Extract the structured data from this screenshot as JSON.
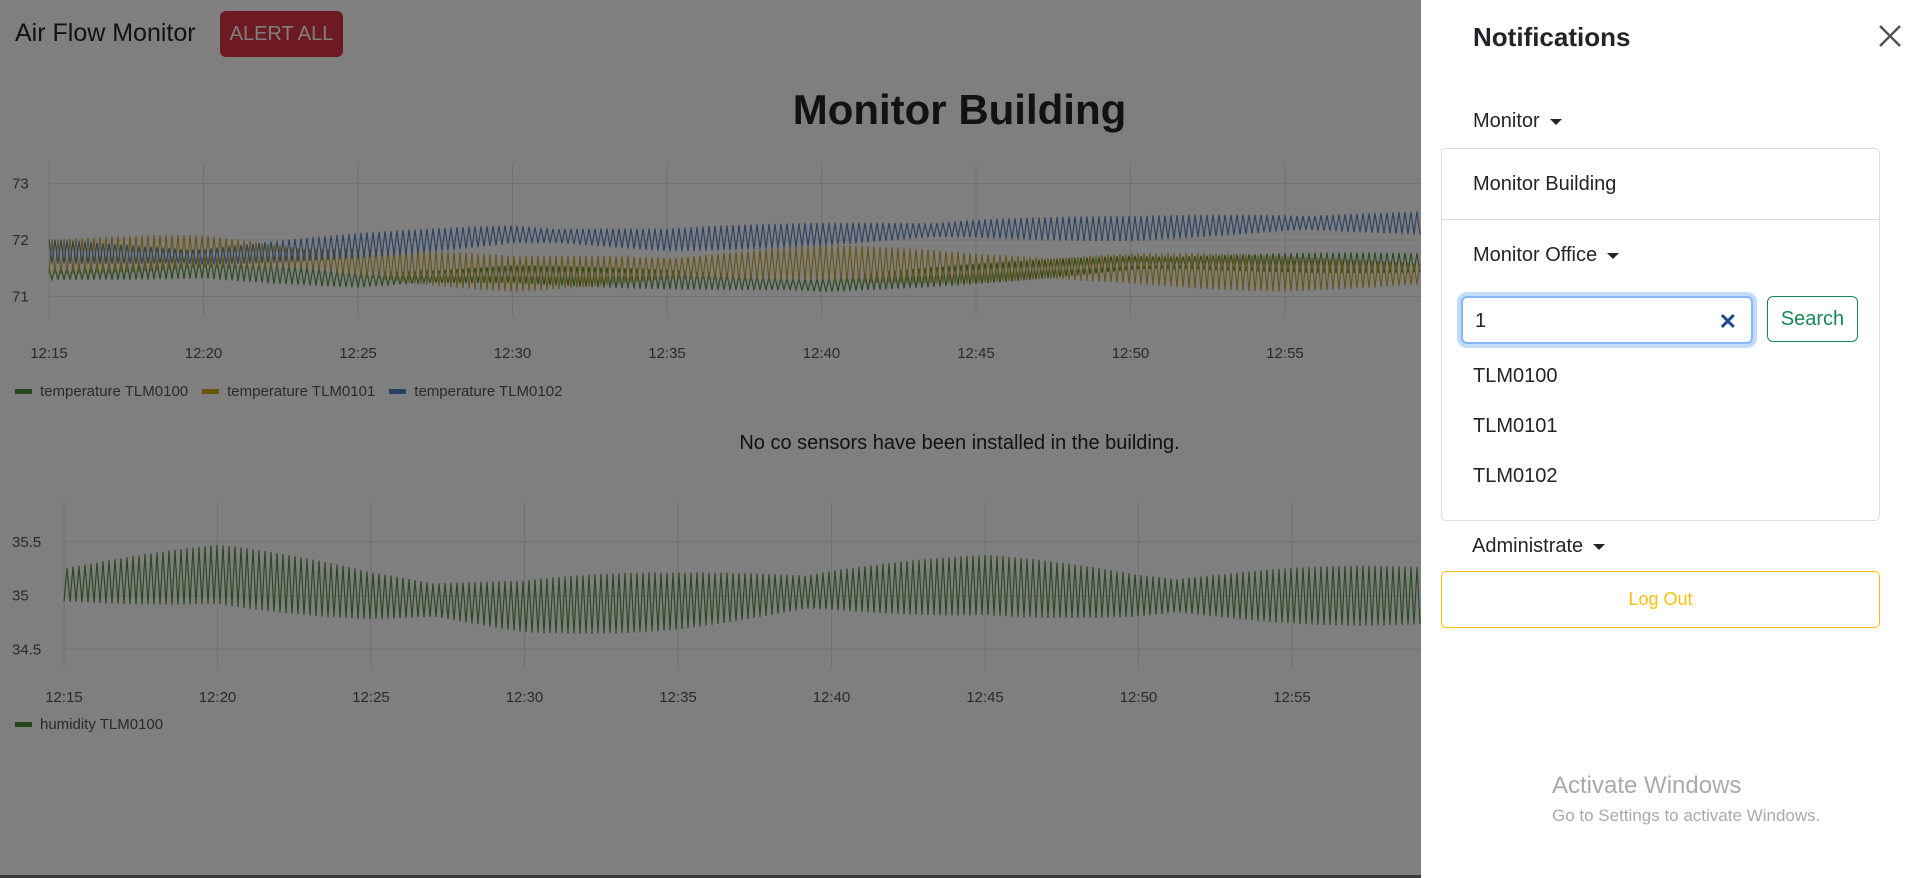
{
  "app": {
    "brand": "Air Flow Monitor",
    "alert_all_label": "ALERT ALL",
    "alert_color": "#dc3545",
    "page_title": "Monitor Building",
    "co_note": "No co sensors have been installed in the building."
  },
  "charts": {
    "temperature": {
      "yticks": [
        "73",
        "72",
        "71"
      ],
      "xticks": [
        "12:15",
        "12:20",
        "12:25",
        "12:30",
        "12:35",
        "12:40",
        "12:45",
        "12:50",
        "12:55"
      ],
      "legend": [
        {
          "label": "temperature TLM0100",
          "color": "#4e8c3a"
        },
        {
          "label": "temperature TLM0101",
          "color": "#d0a81e"
        },
        {
          "label": "temperature TLM0102",
          "color": "#4f80c9"
        }
      ]
    },
    "humidity": {
      "yticks": [
        "35.5",
        "35",
        "34.5"
      ],
      "xticks": [
        "12:15",
        "12:20",
        "12:25",
        "12:30",
        "12:35",
        "12:40",
        "12:45",
        "12:50",
        "12:55"
      ],
      "legend": [
        {
          "label": "humidity TLM0100",
          "color": "#4e8c3a"
        }
      ]
    }
  },
  "chart_data": [
    {
      "type": "line",
      "x": [
        "12:15",
        "12:20",
        "12:25",
        "12:30",
        "12:35",
        "12:40",
        "12:45",
        "12:50",
        "12:55"
      ],
      "series": [
        {
          "name": "temperature TLM0100",
          "values": [
            71.4,
            71.5,
            71.3,
            71.4,
            71.3,
            71.2,
            71.4,
            71.6,
            71.6
          ]
        },
        {
          "name": "temperature TLM0101",
          "values": [
            71.7,
            71.8,
            71.6,
            71.4,
            71.5,
            71.6,
            71.5,
            71.5,
            71.4
          ]
        },
        {
          "name": "temperature TLM0102",
          "values": [
            71.8,
            71.7,
            71.9,
            72.1,
            72.0,
            72.1,
            72.2,
            72.2,
            72.3
          ]
        }
      ],
      "ylim": [
        70.8,
        73.2
      ]
    },
    {
      "type": "line",
      "x": [
        "12:15",
        "12:20",
        "12:25",
        "12:30",
        "12:35",
        "12:40",
        "12:45",
        "12:50",
        "12:55"
      ],
      "series": [
        {
          "name": "humidity TLM0100",
          "values": [
            35.1,
            35.2,
            35.0,
            34.9,
            34.95,
            35.05,
            35.1,
            35.0,
            35.0
          ]
        }
      ],
      "ylim": [
        34.4,
        35.8
      ]
    }
  ],
  "drawer": {
    "title": "Notifications",
    "monitor_label": "Monitor",
    "monitor_building": "Monitor Building",
    "monitor_office": "Monitor Office",
    "search_value": "1",
    "search_button": "Search",
    "results": [
      "TLM0100",
      "TLM0101",
      "TLM0102"
    ],
    "administrate_label": "Administrate",
    "logout_label": "Log Out",
    "logout_color": "#ffc107"
  },
  "watermark": {
    "line1": "Activate Windows",
    "line2": "Go to Settings to activate Windows."
  }
}
